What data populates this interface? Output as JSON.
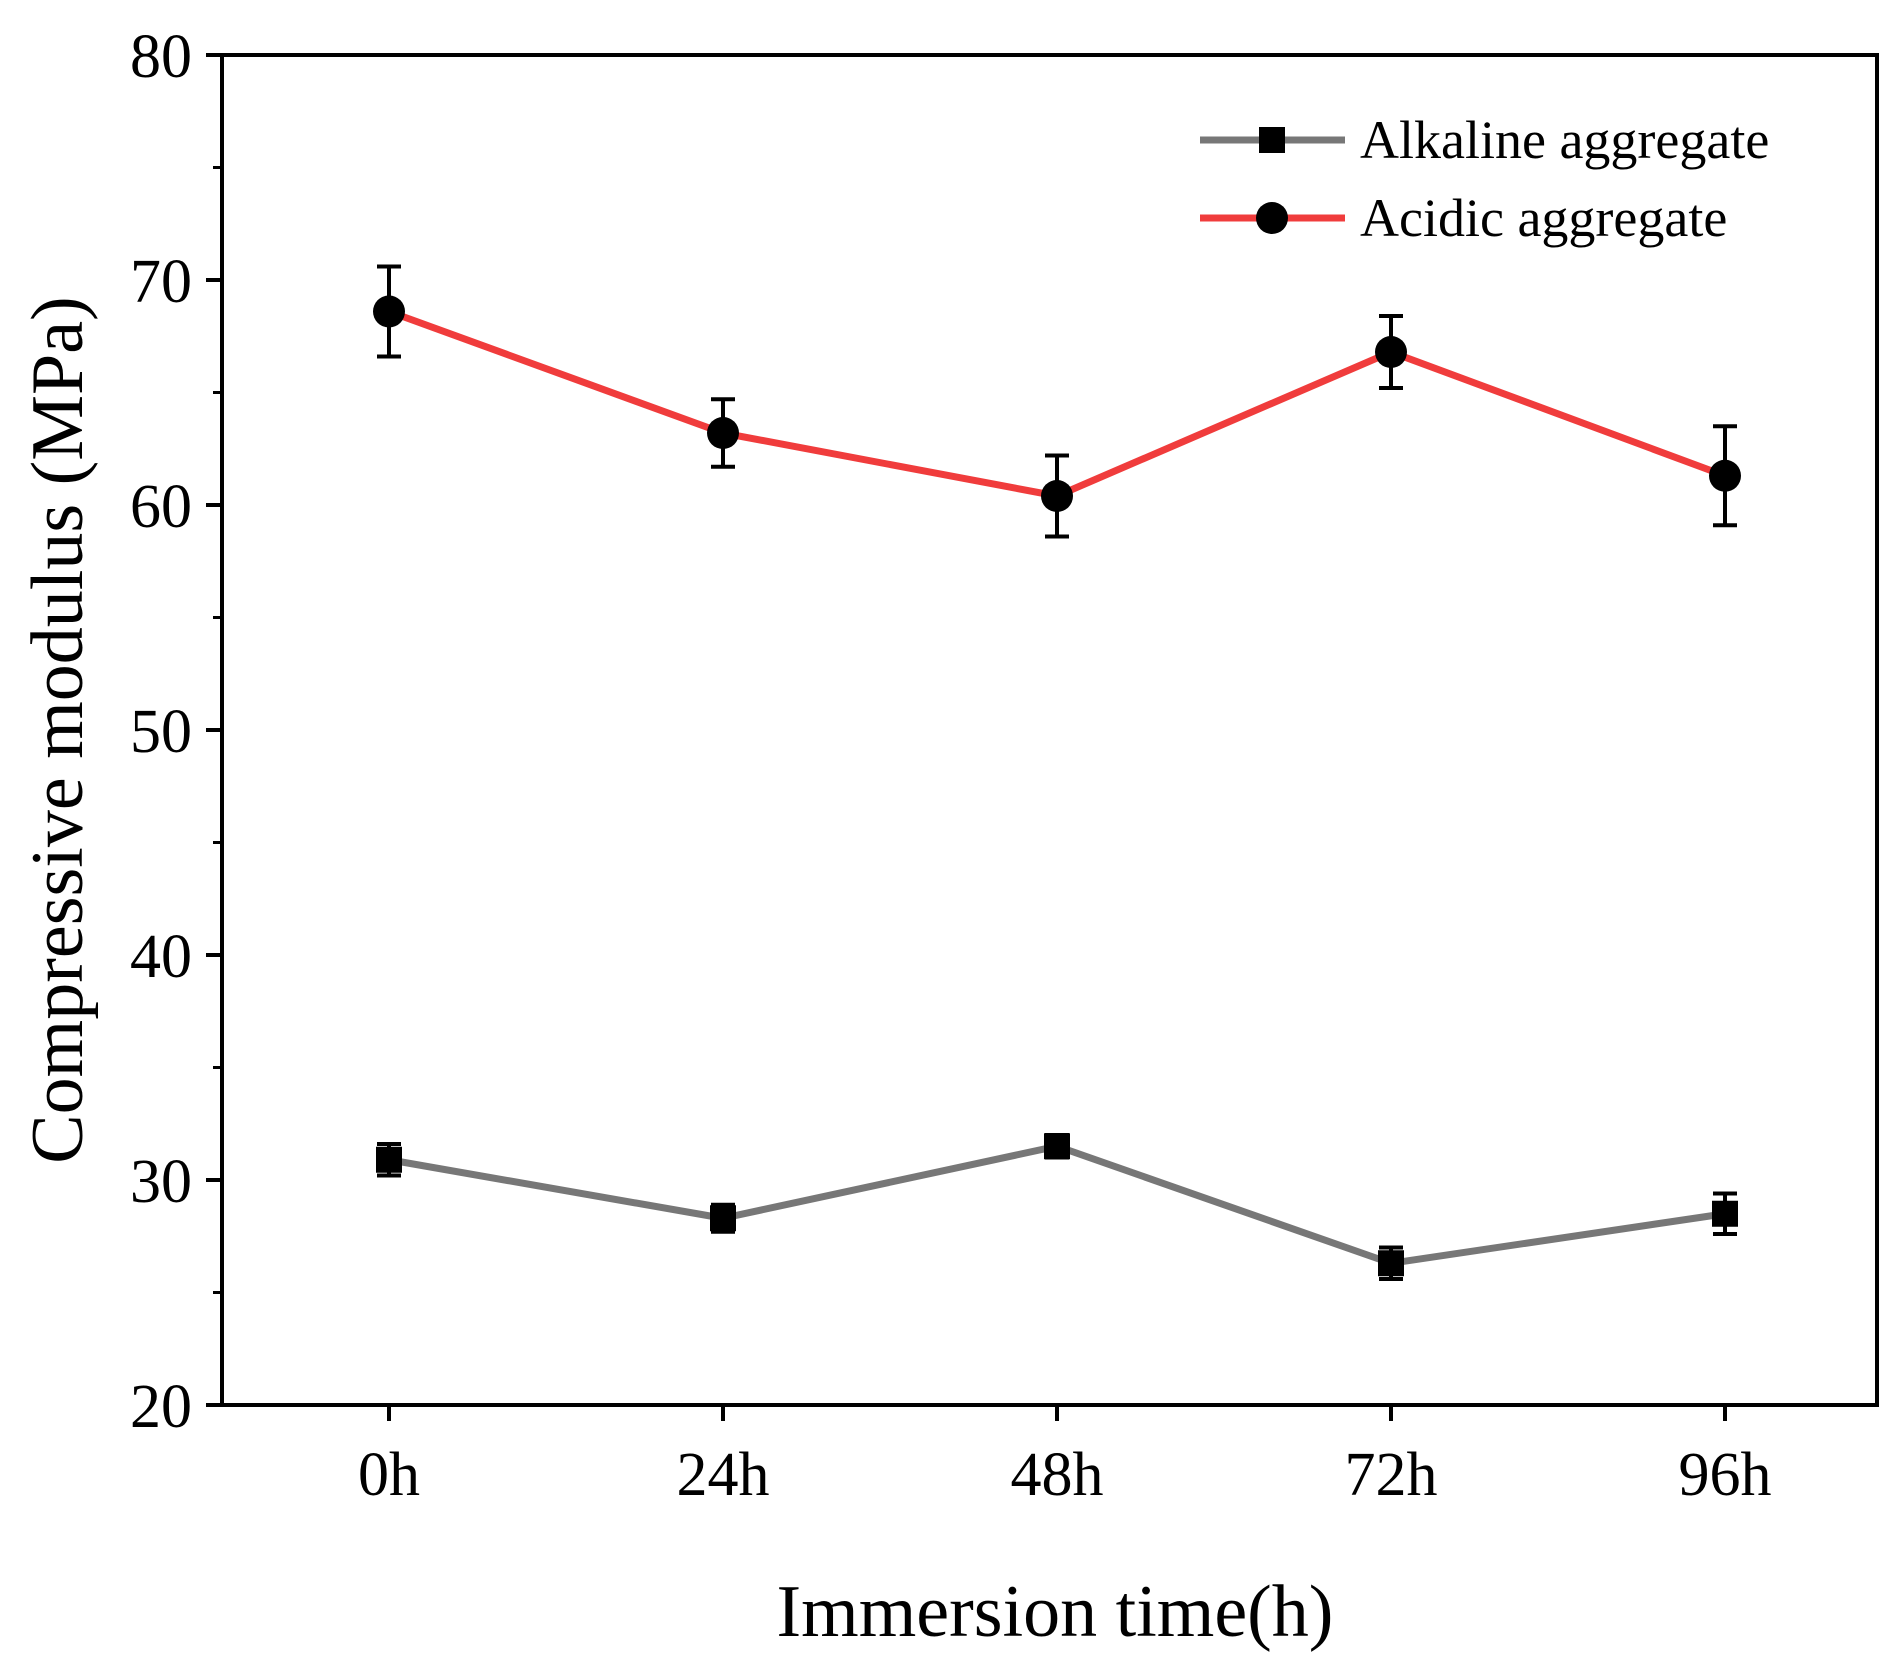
{
  "chart_data": {
    "type": "line",
    "categories": [
      "0h",
      "24h",
      "48h",
      "72h",
      "96h"
    ],
    "xlabel": "Immersion time(h)",
    "ylabel": "Compressive modulus (MPa)",
    "ylim": [
      20,
      80
    ],
    "yticks": [
      20,
      30,
      40,
      50,
      60,
      70,
      80
    ],
    "grid": false,
    "legend_position": "top-right",
    "series": [
      {
        "name": "Alkaline aggregate",
        "color": "#777777",
        "marker": "square",
        "values": [
          30.9,
          28.3,
          31.5,
          26.3,
          28.5
        ],
        "errors": [
          0.7,
          0.6,
          0.5,
          0.7,
          0.9
        ]
      },
      {
        "name": "Acidic aggregate",
        "color": "#f03c3c",
        "marker": "circle",
        "values": [
          68.6,
          63.2,
          60.4,
          66.8,
          61.3
        ],
        "errors": [
          2.0,
          1.5,
          1.8,
          1.6,
          2.2
        ]
      }
    ]
  }
}
